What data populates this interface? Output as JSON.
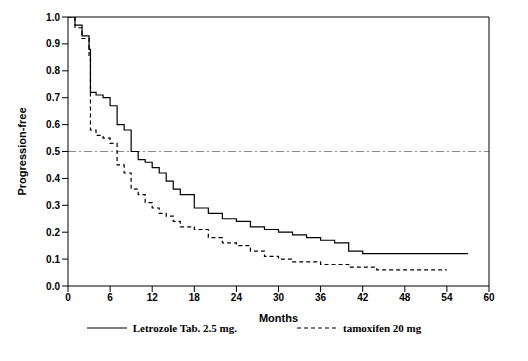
{
  "chart_data": {
    "type": "line",
    "step": true,
    "xlabel": "Months",
    "ylabel": "Progression-free",
    "xlim": [
      0,
      60
    ],
    "xticks": [
      0,
      6,
      12,
      18,
      24,
      30,
      36,
      42,
      48,
      54,
      60
    ],
    "ylim": [
      0,
      1
    ],
    "yticks": [
      {
        "value": 0,
        "label": "0.0"
      },
      0.1,
      0.2,
      0.3,
      0.4,
      0.5,
      0.6,
      0.7,
      0.8,
      0.9,
      {
        "value": 1,
        "label": "1.0"
      }
    ],
    "reference_y": 0.5,
    "grid": false,
    "legend": "bottom",
    "series": [
      {
        "name": "Letrozole Tab. 2.5 mg.",
        "color": "#000000",
        "line_style": "solid",
        "x": [
          0,
          1,
          2,
          3,
          3.2,
          4,
          5,
          6,
          7,
          8,
          9,
          10,
          11,
          12,
          13,
          14,
          15,
          16,
          18,
          20,
          22,
          24,
          26,
          28,
          30,
          32,
          34,
          36,
          38,
          40,
          42,
          57
        ],
        "values": [
          1.0,
          0.97,
          0.93,
          0.88,
          0.72,
          0.71,
          0.7,
          0.67,
          0.6,
          0.58,
          0.5,
          0.47,
          0.46,
          0.44,
          0.42,
          0.39,
          0.36,
          0.34,
          0.29,
          0.27,
          0.25,
          0.24,
          0.22,
          0.21,
          0.2,
          0.19,
          0.18,
          0.17,
          0.16,
          0.13,
          0.12,
          0.12
        ]
      },
      {
        "name": "tamoxifen 20 mg",
        "color": "#000000",
        "line_style": "dashed",
        "x": [
          0,
          1,
          2,
          3,
          3.2,
          4,
          5,
          6,
          7,
          8,
          9,
          10,
          11,
          12,
          13,
          14,
          15,
          16,
          18,
          20,
          22,
          24,
          26,
          28,
          30,
          32,
          34,
          36,
          38,
          40,
          42,
          44,
          47,
          54
        ],
        "values": [
          1.0,
          0.96,
          0.92,
          0.85,
          0.58,
          0.56,
          0.55,
          0.53,
          0.45,
          0.42,
          0.36,
          0.34,
          0.31,
          0.29,
          0.27,
          0.26,
          0.24,
          0.22,
          0.21,
          0.18,
          0.16,
          0.15,
          0.13,
          0.11,
          0.1,
          0.09,
          0.09,
          0.08,
          0.08,
          0.07,
          0.07,
          0.06,
          0.06,
          0.06
        ]
      }
    ]
  }
}
